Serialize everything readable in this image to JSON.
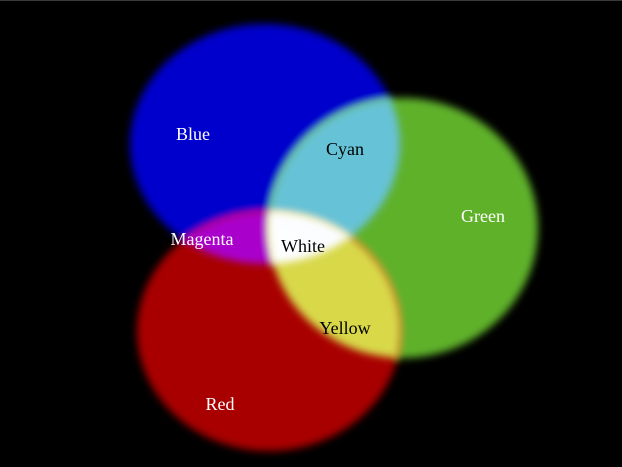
{
  "diagram": {
    "type": "additive color venn",
    "background": "#000000",
    "circles": [
      {
        "name": "Blue",
        "color": "#0000ff"
      },
      {
        "name": "Green",
        "color": "#66c22a"
      },
      {
        "name": "Red",
        "color": "#e60000"
      }
    ],
    "labels": {
      "blue": "Blue",
      "green": "Green",
      "red": "Red",
      "cyan": "Cyan",
      "magenta": "Magenta",
      "yellow": "Yellow",
      "white": "White"
    },
    "label_colors": {
      "blue": "#ffffff",
      "green": "#ffffff",
      "red": "#ffffff",
      "magenta": "#ffffff",
      "cyan": "#000000",
      "yellow": "#000000",
      "white": "#000000"
    }
  }
}
